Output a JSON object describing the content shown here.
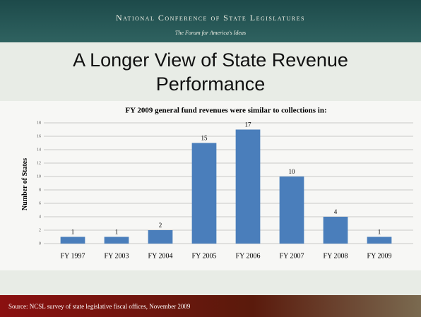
{
  "header": {
    "org": "National Conference of State Legislatures",
    "tagline": "The Forum for America's Ideas"
  },
  "slide_title": "A Longer View of State Revenue Performance",
  "chart_data": {
    "type": "bar",
    "title": "FY 2009 general fund revenues were similar to collections in:",
    "y_label": "Number of States",
    "categories": [
      "FY 1997",
      "FY 2003",
      "FY 2004",
      "FY 2005",
      "FY 2006",
      "FY 2007",
      "FY 2008",
      "FY 2009"
    ],
    "values": [
      1,
      1,
      2,
      15,
      17,
      10,
      4,
      1
    ],
    "color": "#4a7ebb",
    "ylim": [
      0,
      18
    ],
    "yticks": [
      0,
      2,
      4,
      6,
      8,
      10,
      12,
      14,
      16,
      18
    ],
    "grid": true
  },
  "footer": "Source: NCSL survey of state legislative fiscal offices, November 2009"
}
